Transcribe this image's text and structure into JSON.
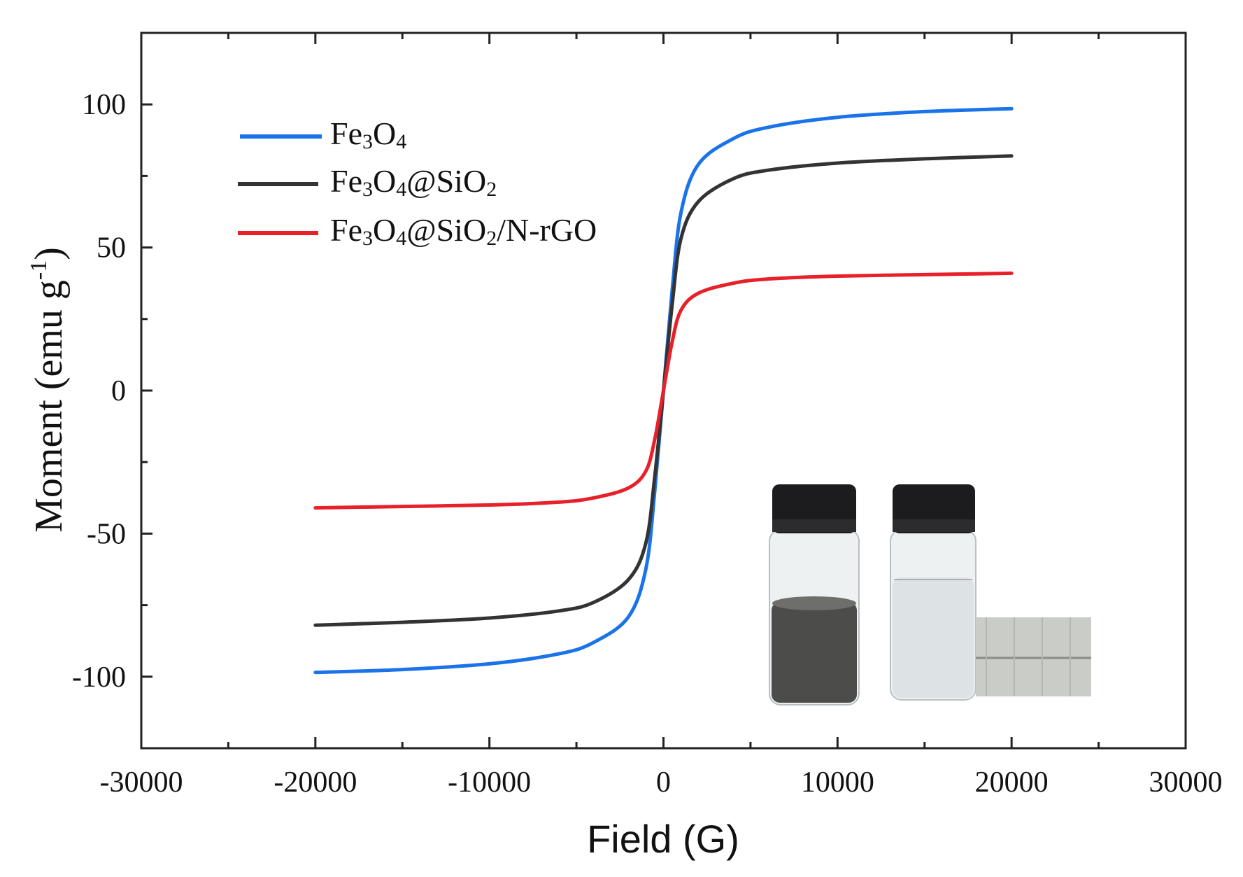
{
  "chart_data": {
    "type": "line",
    "xlabel": "Field (G)",
    "ylabel": "Moment (emu g",
    "ylabel_sup": "-1",
    "ylabel_close": ")",
    "xlim": [
      -30000,
      30000
    ],
    "ylim": [
      -125,
      125
    ],
    "xticks": [
      -30000,
      -20000,
      -10000,
      0,
      10000,
      20000,
      30000
    ],
    "xtick_labels": [
      "-30000",
      "-20000",
      "-10000",
      "0",
      "10000",
      "20000",
      "30000"
    ],
    "yticks": [
      -100,
      -50,
      0,
      50,
      100
    ],
    "ytick_labels": [
      "-100",
      "-50",
      "0",
      "50",
      "100"
    ],
    "legend_position": "top-left",
    "grid": false,
    "series": [
      {
        "name": "Fe3O4",
        "name_parts": [
          {
            "text": "Fe"
          },
          {
            "text": "3",
            "sub": true
          },
          {
            "text": "O"
          },
          {
            "text": "4",
            "sub": true
          }
        ],
        "color": "#1a73e8",
        "x": [
          -20000,
          -15000,
          -10000,
          -6000,
          -4000,
          -2000,
          -1000,
          -500,
          0,
          500,
          1000,
          2000,
          4000,
          6000,
          10000,
          15000,
          20000
        ],
        "y": [
          -98.5,
          -97.5,
          -95.5,
          -92,
          -88,
          -79,
          -62,
          -35,
          0,
          35,
          62,
          79,
          88,
          92,
          95.5,
          97.5,
          98.5
        ]
      },
      {
        "name": "Fe3O4@SiO2",
        "name_parts": [
          {
            "text": "Fe"
          },
          {
            "text": "3",
            "sub": true
          },
          {
            "text": "O"
          },
          {
            "text": "4",
            "sub": true
          },
          {
            "text": "@SiO"
          },
          {
            "text": "2",
            "sub": true
          }
        ],
        "color": "#333333",
        "x": [
          -20000,
          -15000,
          -10000,
          -6000,
          -4000,
          -2000,
          -1000,
          -500,
          0,
          500,
          1000,
          2000,
          4000,
          6000,
          10000,
          15000,
          20000
        ],
        "y": [
          -82,
          -81,
          -79.5,
          -77,
          -74,
          -66,
          -53,
          -30,
          0,
          30,
          53,
          66,
          74,
          77,
          79.5,
          81,
          82
        ]
      },
      {
        "name": "Fe3O4@SiO2/N-rGO",
        "name_parts": [
          {
            "text": "Fe"
          },
          {
            "text": "3",
            "sub": true
          },
          {
            "text": "O"
          },
          {
            "text": "4",
            "sub": true
          },
          {
            "text": "@SiO"
          },
          {
            "text": "2",
            "sub": true
          },
          {
            "text": "/N-rGO"
          }
        ],
        "color": "#e8202a",
        "x": [
          -20000,
          -15000,
          -10000,
          -6000,
          -4000,
          -2000,
          -1000,
          -500,
          0,
          500,
          1000,
          2000,
          4000,
          6000,
          10000,
          15000,
          20000
        ],
        "y": [
          -41,
          -40.5,
          -40,
          -39,
          -37.5,
          -34,
          -28,
          -17,
          0,
          17,
          28,
          34,
          37.5,
          39,
          40,
          40.5,
          41
        ]
      }
    ]
  }
}
